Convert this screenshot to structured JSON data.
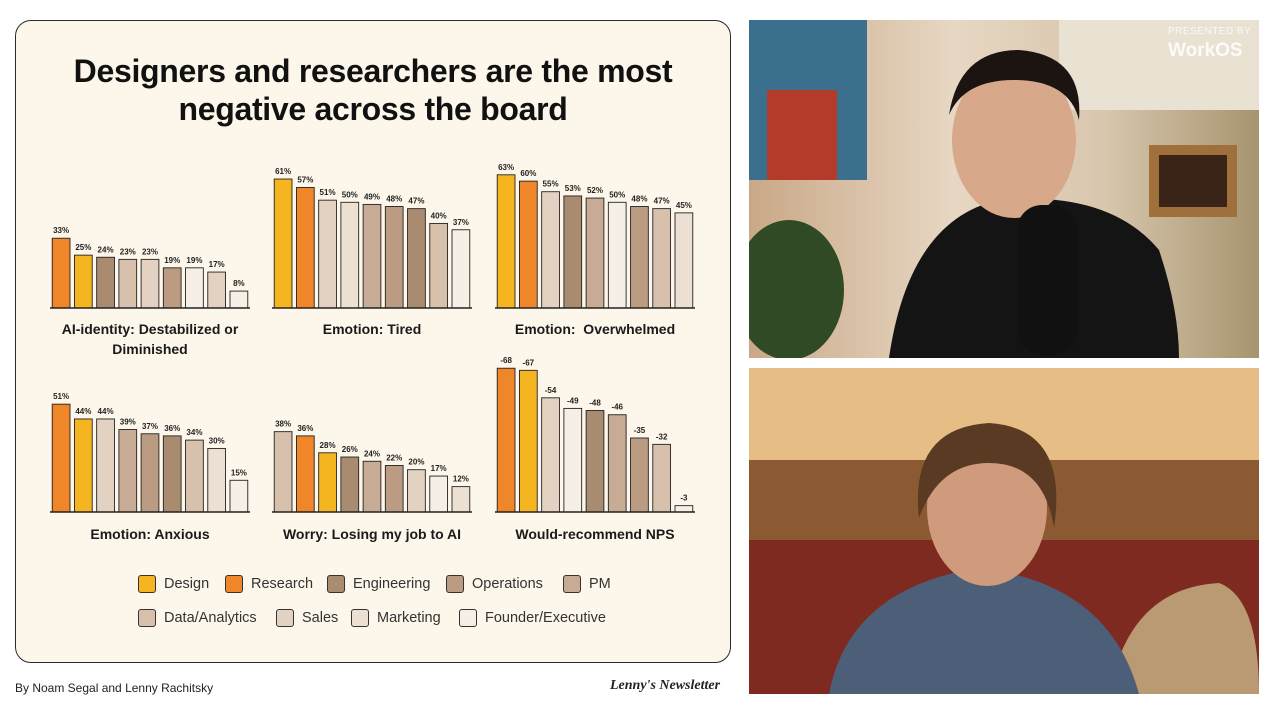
{
  "slide": {
    "title": "Designers and researchers are the most negative across the board"
  },
  "legend": [
    {
      "name": "Design",
      "color": "#f5b520"
    },
    {
      "name": "Research",
      "color": "#f0862a"
    },
    {
      "name": "Engineering",
      "color": "#a98b70"
    },
    {
      "name": "Operations",
      "color": "#bb9c82"
    },
    {
      "name": "PM",
      "color": "#c8ab94"
    },
    {
      "name": "Data/Analytics",
      "color": "#d7c0ac"
    },
    {
      "name": "Sales",
      "color": "#e3d2c2"
    },
    {
      "name": "Marketing",
      "color": "#ece0d2"
    },
    {
      "name": "Founder/Executive",
      "color": "#f6efe6"
    }
  ],
  "chart_data": [
    {
      "type": "bar",
      "title": "AI-identity: Destabilized or Diminished",
      "values": [
        33,
        25,
        24,
        23,
        23,
        19,
        19,
        17,
        8
      ],
      "value_labels": [
        "33%",
        "25%",
        "24%",
        "23%",
        "23%",
        "19%",
        "19%",
        "17%",
        "8%"
      ],
      "colors": [
        "#f0862a",
        "#f5b520",
        "#a98b70",
        "#d7c0ac",
        "#e3d2c2",
        "#bb9c82",
        "#f6efe6",
        "#e3d2c2",
        "#f6efe6"
      ],
      "ylim": [
        0,
        70
      ]
    },
    {
      "type": "bar",
      "title": "Emotion: Tired",
      "values": [
        61,
        57,
        51,
        50,
        49,
        48,
        47,
        40,
        37
      ],
      "value_labels": [
        "61%",
        "57%",
        "51%",
        "50%",
        "49%",
        "48%",
        "47%",
        "40%",
        "37%"
      ],
      "colors": [
        "#f5b520",
        "#f0862a",
        "#e3d2c2",
        "#ece0d2",
        "#c8ab94",
        "#bb9c82",
        "#a98b70",
        "#d7c0ac",
        "#f6efe6"
      ],
      "ylim": [
        0,
        70
      ]
    },
    {
      "type": "bar",
      "title": "Emotion:  Overwhelmed",
      "values": [
        63,
        60,
        55,
        53,
        52,
        50,
        48,
        47,
        45
      ],
      "value_labels": [
        "63%",
        "60%",
        "55%",
        "53%",
        "52%",
        "50%",
        "48%",
        "47%",
        "45%"
      ],
      "colors": [
        "#f5b520",
        "#f0862a",
        "#e3d2c2",
        "#a98b70",
        "#c8ab94",
        "#f6efe6",
        "#bb9c82",
        "#d7c0ac",
        "#ece0d2"
      ],
      "ylim": [
        0,
        70
      ]
    },
    {
      "type": "bar",
      "title": "Emotion: Anxious",
      "values": [
        51,
        44,
        44,
        39,
        37,
        36,
        34,
        30,
        15
      ],
      "value_labels": [
        "51%",
        "44%",
        "44%",
        "39%",
        "37%",
        "36%",
        "34%",
        "30%",
        "15%"
      ],
      "colors": [
        "#f0862a",
        "#f5b520",
        "#e3d2c2",
        "#c8ab94",
        "#bb9c82",
        "#a98b70",
        "#d7c0ac",
        "#ece0d2",
        "#f6efe6"
      ],
      "ylim": [
        0,
        70
      ]
    },
    {
      "type": "bar",
      "title": "Worry: Losing my job to AI",
      "values": [
        38,
        36,
        28,
        26,
        24,
        22,
        20,
        17,
        12
      ],
      "value_labels": [
        "38%",
        "36%",
        "28%",
        "26%",
        "24%",
        "22%",
        "20%",
        "17%",
        "12%"
      ],
      "colors": [
        "#d7c0ac",
        "#f0862a",
        "#f5b520",
        "#a98b70",
        "#c8ab94",
        "#bb9c82",
        "#e3d2c2",
        "#f6efe6",
        "#ece0d2"
      ],
      "ylim": [
        0,
        70
      ]
    },
    {
      "type": "bar",
      "title": "Would-recommend NPS",
      "values": [
        -68,
        -67,
        -54,
        -49,
        -48,
        -46,
        -35,
        -32,
        -3
      ],
      "colors": [
        "#f0862a",
        "#f5b520",
        "#e3d2c2",
        "#f6efe6",
        "#a98b70",
        "#c8ab94",
        "#bb9c82",
        "#d7c0ac",
        "#f6efe6"
      ],
      "ylim": [
        0,
        -70
      ]
    }
  ],
  "video": {
    "sponsor_caption": "PRESENTED BY",
    "sponsor": "WorkOS"
  },
  "footer": {
    "byline": "By Noam Segal and Lenny Rachitsky",
    "brand": "Lenny's Newsletter"
  }
}
